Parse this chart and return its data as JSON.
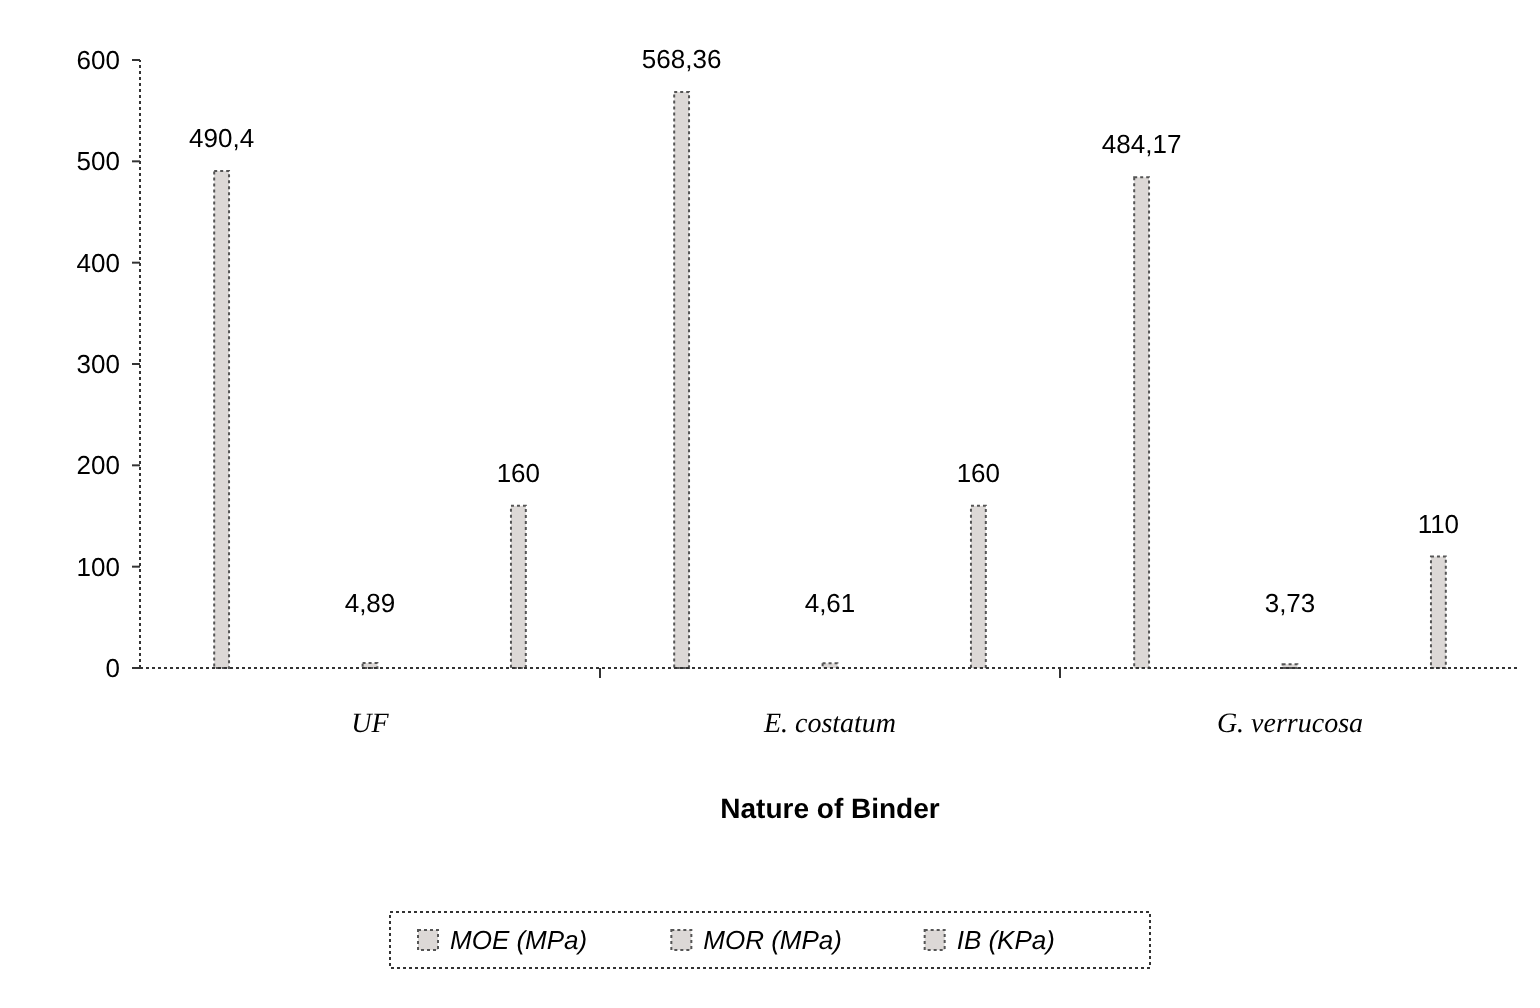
{
  "chart_data": {
    "type": "bar",
    "xlabel": "Nature of Binder",
    "categories": [
      "UF",
      "E. costatum",
      "G. verrucosa"
    ],
    "series": [
      {
        "name": "MOE (MPa)",
        "color": "#dcd8d6",
        "values": [
          490.4,
          568.36,
          484.17
        ],
        "value_labels": [
          "490,4",
          "568,36",
          "484,17"
        ]
      },
      {
        "name": "MOR (MPa)",
        "color": "#dcd8d6",
        "values": [
          4.89,
          4.61,
          3.73
        ],
        "value_labels": [
          "4,89",
          "4,61",
          "3,73"
        ]
      },
      {
        "name": "IB (KPa)",
        "color": "#dcd8d6",
        "values": [
          160,
          160,
          110
        ],
        "value_labels": [
          "160",
          "160",
          "110"
        ]
      }
    ],
    "ylim": [
      0,
      600
    ],
    "yticks": [
      0,
      100,
      200,
      300,
      400,
      500,
      600
    ],
    "legend": "bottom",
    "grid": false
  }
}
